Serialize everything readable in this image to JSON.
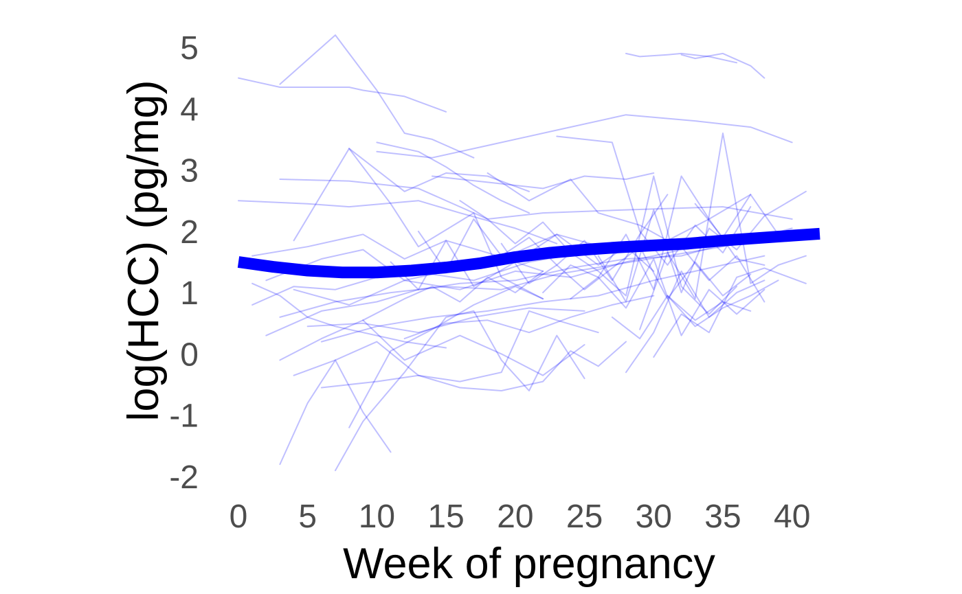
{
  "chart_data": {
    "type": "line",
    "title": "",
    "xlabel": "Week of pregnancy",
    "ylabel": "log(HCC) (pg/mg)",
    "xlim": [
      0,
      42
    ],
    "ylim": [
      -2,
      5.2
    ],
    "x_ticks": [
      {
        "value": 0,
        "label": "0"
      },
      {
        "value": 5,
        "label": "5"
      },
      {
        "value": 10,
        "label": "10"
      },
      {
        "value": 15,
        "label": "15"
      },
      {
        "value": 20,
        "label": "20"
      },
      {
        "value": 25,
        "label": "25"
      },
      {
        "value": 30,
        "label": "30"
      },
      {
        "value": 35,
        "label": "35"
      },
      {
        "value": 40,
        "label": "40"
      }
    ],
    "y_ticks": [
      {
        "value": -2,
        "label": "-2"
      },
      {
        "value": -1,
        "label": "-1"
      },
      {
        "value": 0,
        "label": "0"
      },
      {
        "value": 1,
        "label": "1"
      },
      {
        "value": 2,
        "label": "2"
      },
      {
        "value": 3,
        "label": "3"
      },
      {
        "value": 4,
        "label": "4"
      },
      {
        "value": 5,
        "label": "5"
      }
    ],
    "grid": false,
    "legend": "none",
    "colors": {
      "individual": "#0000ff",
      "individual_opacity": 0.25,
      "trend": "#0000ff"
    },
    "trend": {
      "x": [
        0,
        2.5,
        5,
        7.5,
        10,
        12.5,
        15,
        17.5,
        20,
        22.5,
        25,
        27.5,
        30,
        32.5,
        35,
        37.5,
        40,
        42
      ],
      "y": [
        1.5,
        1.42,
        1.36,
        1.33,
        1.33,
        1.36,
        1.41,
        1.48,
        1.58,
        1.65,
        1.7,
        1.74,
        1.77,
        1.8,
        1.85,
        1.89,
        1.93,
        1.96
      ]
    },
    "series": [
      {
        "x": [
          0,
          3,
          8,
          9,
          12,
          15
        ],
        "y": [
          4.5,
          4.35,
          4.35,
          4.3,
          4.2,
          3.95
        ]
      },
      {
        "x": [
          3,
          7,
          10,
          12,
          14,
          17
        ],
        "y": [
          4.4,
          5.2,
          4.3,
          3.6,
          3.5,
          3.2
        ]
      },
      {
        "x": [
          3,
          8,
          13,
          18,
          22,
          28,
          35,
          40
        ],
        "y": [
          2.85,
          2.82,
          2.7,
          2.2,
          2.3,
          2.35,
          2.4,
          2.2
        ]
      },
      {
        "x": [
          28,
          29,
          31,
          32,
          34,
          36
        ],
        "y": [
          4.9,
          4.85,
          4.88,
          4.9,
          4.85,
          4.75
        ]
      },
      {
        "x": [
          32,
          33,
          35,
          37,
          38
        ],
        "y": [
          4.88,
          4.82,
          4.9,
          4.7,
          4.5
        ]
      },
      {
        "x": [
          10,
          14,
          18,
          23,
          28,
          33,
          37,
          40
        ],
        "y": [
          3.3,
          3.2,
          3.4,
          3.65,
          3.9,
          3.8,
          3.7,
          3.45
        ]
      },
      {
        "x": [
          8,
          12,
          15,
          18,
          21
        ],
        "y": [
          3.35,
          2.65,
          2.95,
          2.9,
          2.65
        ]
      },
      {
        "x": [
          0,
          5,
          8,
          13,
          16,
          20,
          23
        ],
        "y": [
          2.5,
          2.45,
          2.4,
          2.5,
          2.3,
          2.05,
          1.8
        ]
      },
      {
        "x": [
          4,
          8,
          11,
          13,
          17,
          19,
          22
        ],
        "y": [
          1.85,
          3.35,
          2.45,
          1.75,
          2.3,
          1.25,
          0.9
        ]
      },
      {
        "x": [
          10,
          13,
          15,
          17,
          19,
          21
        ],
        "y": [
          3.45,
          3.3,
          3.05,
          2.75,
          2.5,
          2.3
        ]
      },
      {
        "x": [
          14,
          16,
          18,
          22,
          25,
          28,
          30
        ],
        "y": [
          2.9,
          2.85,
          2.8,
          2.7,
          2.9,
          2.85,
          2.95
        ]
      },
      {
        "x": [
          18,
          21,
          24,
          26,
          29,
          31,
          34,
          37
        ],
        "y": [
          2.95,
          2.5,
          2.85,
          2.3,
          2.1,
          1.85,
          2.2,
          2.6
        ]
      },
      {
        "x": [
          23,
          27,
          29,
          31,
          33,
          35,
          37
        ],
        "y": [
          3.55,
          3.45,
          2.0,
          1.45,
          2.1,
          1.65,
          2.4
        ]
      },
      {
        "x": [
          1,
          5,
          9,
          12,
          15,
          18,
          22
        ],
        "y": [
          1.6,
          1.75,
          1.95,
          1.55,
          1.85,
          1.65,
          1.35
        ]
      },
      {
        "x": [
          2,
          6,
          9,
          12,
          15,
          19,
          23,
          27
        ],
        "y": [
          1.2,
          1.55,
          1.7,
          1.2,
          1.35,
          1.55,
          1.95,
          1.7
        ]
      },
      {
        "x": [
          1,
          4,
          7,
          10,
          14,
          17,
          21,
          25,
          29
        ],
        "y": [
          0.8,
          1.1,
          1.05,
          1.25,
          1.3,
          1.2,
          1.5,
          1.65,
          1.75
        ]
      },
      {
        "x": [
          2,
          6,
          10,
          13,
          16,
          20,
          24,
          28,
          32,
          36
        ],
        "y": [
          0.3,
          0.7,
          0.85,
          1.05,
          1.15,
          1.2,
          1.4,
          1.55,
          1.6,
          1.85
        ]
      },
      {
        "x": [
          3,
          7,
          11,
          15,
          19,
          23,
          27,
          31,
          35,
          39
        ],
        "y": [
          0.6,
          0.85,
          1.0,
          1.1,
          1.05,
          1.3,
          1.45,
          1.6,
          1.75,
          2.0
        ]
      },
      {
        "x": [
          4,
          8,
          12,
          16,
          20,
          24,
          28,
          32,
          36,
          40
        ],
        "y": [
          1.05,
          0.8,
          1.2,
          1.05,
          1.35,
          1.25,
          1.5,
          1.7,
          1.8,
          2.05
        ]
      },
      {
        "x": [
          6,
          10,
          14,
          18,
          22,
          26,
          30,
          34,
          38
        ],
        "y": [
          0.2,
          0.45,
          0.6,
          0.7,
          0.85,
          0.95,
          1.2,
          1.4,
          1.6
        ]
      },
      {
        "x": [
          5,
          9,
          13,
          17,
          21,
          25
        ],
        "y": [
          0.45,
          0.5,
          0.35,
          0.6,
          0.75,
          0.7
        ]
      },
      {
        "x": [
          1,
          3,
          5,
          7,
          9,
          12,
          15
        ],
        "y": [
          1.15,
          0.95,
          0.6,
          0.45,
          0.35,
          0.2,
          0.1
        ]
      },
      {
        "x": [
          3,
          6,
          9,
          12,
          16,
          19,
          22,
          25
        ],
        "y": [
          -0.1,
          0.25,
          0.55,
          -0.1,
          0.3,
          0.0,
          -0.35,
          0.15
        ]
      },
      {
        "x": [
          4,
          7,
          10,
          13,
          16,
          19,
          21,
          23,
          26
        ],
        "y": [
          -0.35,
          -0.1,
          0.2,
          -0.35,
          -0.45,
          -0.3,
          0.7,
          0.55,
          0.35
        ]
      },
      {
        "x": [
          6,
          10,
          13,
          16,
          19,
          22,
          24,
          26,
          28
        ],
        "y": [
          -0.55,
          -0.45,
          -0.35,
          -0.55,
          -0.6,
          -0.45,
          0.05,
          -0.2,
          0.2
        ]
      },
      {
        "x": [
          3,
          5,
          7,
          9,
          11
        ],
        "y": [
          -1.8,
          -0.8,
          -0.1,
          -0.95,
          -1.6
        ]
      },
      {
        "x": [
          7,
          9,
          12,
          15,
          17,
          19,
          21,
          23,
          25
        ],
        "y": [
          -1.9,
          -1.1,
          -0.3,
          0.6,
          0.7,
          -0.1,
          -0.6,
          0.3,
          -0.4
        ]
      },
      {
        "x": [
          8,
          11,
          14,
          17,
          20,
          22
        ],
        "y": [
          -1.2,
          0.05,
          0.4,
          0.8,
          1.1,
          0.9
        ]
      },
      {
        "x": [
          11,
          13,
          15,
          17,
          20,
          23,
          26,
          28,
          30
        ],
        "y": [
          1.5,
          1.05,
          1.85,
          1.1,
          1.5,
          1.95,
          1.45,
          1.75,
          1.35
        ]
      },
      {
        "x": [
          13,
          15,
          17,
          19,
          21,
          23,
          25,
          27,
          29,
          31
        ],
        "y": [
          2.0,
          1.35,
          2.2,
          1.6,
          1.9,
          1.45,
          1.85,
          1.2,
          1.95,
          2.6
        ]
      },
      {
        "x": [
          16,
          18,
          20,
          22,
          24,
          26,
          28,
          30,
          32,
          34,
          36
        ],
        "y": [
          2.5,
          2.2,
          1.8,
          2.15,
          1.65,
          1.35,
          0.95,
          2.9,
          1.1,
          0.65,
          1.1
        ]
      },
      {
        "x": [
          19,
          21,
          23,
          25,
          27,
          29,
          31,
          33,
          35,
          37
        ],
        "y": [
          1.8,
          1.15,
          1.45,
          1.05,
          1.4,
          1.75,
          0.9,
          1.5,
          0.95,
          1.3
        ]
      },
      {
        "x": [
          22,
          24,
          26,
          28,
          30,
          32,
          34,
          36,
          38
        ],
        "y": [
          1.0,
          1.45,
          1.25,
          1.95,
          1.05,
          2.9,
          2.2,
          1.55,
          1.45
        ]
      },
      {
        "x": [
          24,
          26,
          28,
          30,
          32,
          34,
          36,
          38
        ],
        "y": [
          0.9,
          1.25,
          0.75,
          1.55,
          0.3,
          1.05,
          0.65,
          1.05
        ]
      },
      {
        "x": [
          26,
          28,
          30,
          32,
          34,
          36,
          38,
          41
        ],
        "y": [
          1.6,
          0.85,
          2.35,
          1.0,
          2.05,
          1.7,
          2.25,
          2.65
        ]
      },
      {
        "x": [
          27,
          29,
          31,
          33,
          35,
          37
        ],
        "y": [
          0.6,
          0.25,
          0.95,
          0.55,
          0.85,
          0.7
        ]
      },
      {
        "x": [
          28,
          30,
          32,
          34,
          36,
          38
        ],
        "y": [
          -0.3,
          0.35,
          1.35,
          0.6,
          1.0,
          1.2
        ]
      },
      {
        "x": [
          29,
          31,
          33,
          35,
          37,
          39,
          41
        ],
        "y": [
          0.4,
          1.65,
          0.9,
          3.6,
          1.15,
          1.45,
          1.6
        ]
      },
      {
        "x": [
          30,
          32,
          34,
          36,
          38,
          41
        ],
        "y": [
          -0.05,
          0.65,
          0.35,
          1.25,
          1.4,
          1.15
        ]
      },
      {
        "x": [
          31,
          33,
          35,
          37,
          39
        ],
        "y": [
          0.95,
          0.45,
          0.75,
          0.95,
          1.2
        ]
      },
      {
        "x": [
          32,
          34,
          36,
          38
        ],
        "y": [
          1.75,
          1.2,
          1.6,
          0.85
        ]
      },
      {
        "x": [
          33,
          35,
          37,
          39
        ],
        "y": [
          2.45,
          1.9,
          2.6,
          1.95
        ]
      },
      {
        "x": [
          12,
          15,
          18,
          21,
          24,
          27,
          30
        ],
        "y": [
          0.25,
          0.5,
          0.55,
          0.35,
          0.6,
          0.8,
          0.95
        ]
      },
      {
        "x": [
          9,
          12,
          14,
          16,
          18,
          20,
          22
        ],
        "y": [
          0.55,
          0.9,
          1.1,
          0.85,
          1.25,
          1.0,
          1.35
        ]
      }
    ]
  }
}
